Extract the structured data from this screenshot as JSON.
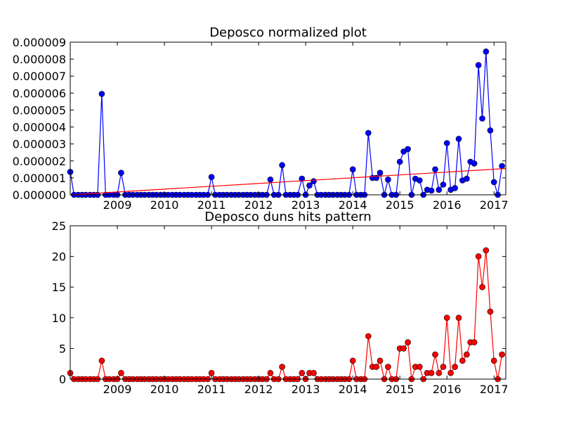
{
  "chart_data": [
    {
      "type": "line",
      "title": "Deposco normalized plot",
      "xlabel": "",
      "ylabel": "",
      "x_unit": "year",
      "xlim": [
        2008.0,
        2017.25
      ],
      "ylim": [
        0,
        9e-06
      ],
      "x_ticks": [
        2009,
        2010,
        2011,
        2012,
        2013,
        2014,
        2015,
        2016,
        2017
      ],
      "y_ticks": [
        0,
        1e-06,
        2e-06,
        3e-06,
        4e-06,
        5e-06,
        6e-06,
        7e-06,
        8e-06,
        9e-06
      ],
      "y_tick_labels": [
        "0.000000",
        "0.000001",
        "0.000002",
        "0.000003",
        "0.000004",
        "0.000005",
        "0.000006",
        "0.000007",
        "0.000008",
        "0.000009"
      ],
      "grid": false,
      "series": [
        {
          "color": "#0000ff",
          "marker": "circle",
          "points": [
            [
              2008.0,
              1.35e-06
            ],
            [
              2008.08,
              0
            ],
            [
              2008.17,
              0
            ],
            [
              2008.25,
              0
            ],
            [
              2008.33,
              0
            ],
            [
              2008.42,
              0
            ],
            [
              2008.5,
              0
            ],
            [
              2008.58,
              0
            ],
            [
              2008.67,
              5.95e-06
            ],
            [
              2008.75,
              0
            ],
            [
              2008.83,
              0
            ],
            [
              2008.92,
              0
            ],
            [
              2009.0,
              0
            ],
            [
              2009.08,
              1.3e-06
            ],
            [
              2009.17,
              0
            ],
            [
              2009.25,
              0
            ],
            [
              2009.33,
              0
            ],
            [
              2009.42,
              0
            ],
            [
              2009.5,
              0
            ],
            [
              2009.58,
              0
            ],
            [
              2009.67,
              0
            ],
            [
              2009.75,
              0
            ],
            [
              2009.83,
              0
            ],
            [
              2009.92,
              0
            ],
            [
              2010.0,
              0
            ],
            [
              2010.08,
              0
            ],
            [
              2010.17,
              0
            ],
            [
              2010.25,
              0
            ],
            [
              2010.33,
              0
            ],
            [
              2010.42,
              0
            ],
            [
              2010.5,
              0
            ],
            [
              2010.58,
              0
            ],
            [
              2010.67,
              0
            ],
            [
              2010.75,
              0
            ],
            [
              2010.83,
              0
            ],
            [
              2010.92,
              0
            ],
            [
              2011.0,
              1.05e-06
            ],
            [
              2011.08,
              0
            ],
            [
              2011.17,
              0
            ],
            [
              2011.25,
              0
            ],
            [
              2011.33,
              0
            ],
            [
              2011.42,
              0
            ],
            [
              2011.5,
              0
            ],
            [
              2011.58,
              0
            ],
            [
              2011.67,
              0
            ],
            [
              2011.75,
              0
            ],
            [
              2011.83,
              0
            ],
            [
              2011.92,
              0
            ],
            [
              2012.0,
              0
            ],
            [
              2012.08,
              0
            ],
            [
              2012.17,
              0
            ],
            [
              2012.25,
              9e-07
            ],
            [
              2012.33,
              0
            ],
            [
              2012.42,
              0
            ],
            [
              2012.5,
              1.75e-06
            ],
            [
              2012.58,
              0
            ],
            [
              2012.67,
              0
            ],
            [
              2012.75,
              0
            ],
            [
              2012.83,
              0
            ],
            [
              2012.92,
              9.5e-07
            ],
            [
              2013.0,
              0
            ],
            [
              2013.08,
              5.5e-07
            ],
            [
              2013.17,
              8e-07
            ],
            [
              2013.25,
              0
            ],
            [
              2013.33,
              0
            ],
            [
              2013.42,
              0
            ],
            [
              2013.5,
              0
            ],
            [
              2013.58,
              0
            ],
            [
              2013.67,
              0
            ],
            [
              2013.75,
              0
            ],
            [
              2013.83,
              0
            ],
            [
              2013.92,
              0
            ],
            [
              2014.0,
              1.5e-06
            ],
            [
              2014.08,
              0
            ],
            [
              2014.17,
              0
            ],
            [
              2014.25,
              0
            ],
            [
              2014.33,
              3.65e-06
            ],
            [
              2014.42,
              1e-06
            ],
            [
              2014.5,
              1e-06
            ],
            [
              2014.58,
              1.3e-06
            ],
            [
              2014.67,
              0
            ],
            [
              2014.75,
              9e-07
            ],
            [
              2014.83,
              0
            ],
            [
              2014.92,
              0
            ],
            [
              2015.0,
              1.95e-06
            ],
            [
              2015.08,
              2.55e-06
            ],
            [
              2015.17,
              2.7e-06
            ],
            [
              2015.25,
              0
            ],
            [
              2015.33,
              9.5e-07
            ],
            [
              2015.42,
              8.5e-07
            ],
            [
              2015.5,
              0
            ],
            [
              2015.58,
              3e-07
            ],
            [
              2015.67,
              2.5e-07
            ],
            [
              2015.75,
              1.5e-06
            ],
            [
              2015.83,
              3e-07
            ],
            [
              2015.92,
              6e-07
            ],
            [
              2016.0,
              3.05e-06
            ],
            [
              2016.08,
              3e-07
            ],
            [
              2016.17,
              4e-07
            ],
            [
              2016.25,
              3.3e-06
            ],
            [
              2016.33,
              8.5e-07
            ],
            [
              2016.42,
              9.5e-07
            ],
            [
              2016.5,
              1.95e-06
            ],
            [
              2016.58,
              1.85e-06
            ],
            [
              2016.67,
              7.65e-06
            ],
            [
              2016.75,
              4.5e-06
            ],
            [
              2016.83,
              8.45e-06
            ],
            [
              2016.92,
              3.8e-06
            ],
            [
              2017.0,
              7.5e-07
            ],
            [
              2017.08,
              0
            ],
            [
              2017.17,
              1.7e-06
            ]
          ]
        },
        {
          "color": "#ff0000",
          "marker": "none",
          "points": [
            [
              2008.0,
              0.0
            ],
            [
              2017.25,
              1.55e-06
            ]
          ]
        }
      ]
    },
    {
      "type": "line",
      "title": "Deposco duns hits pattern",
      "xlabel": "",
      "ylabel": "",
      "x_unit": "year",
      "xlim": [
        2008.0,
        2017.25
      ],
      "ylim": [
        0,
        25
      ],
      "x_ticks": [
        2009,
        2010,
        2011,
        2012,
        2013,
        2014,
        2015,
        2016,
        2017
      ],
      "y_ticks": [
        0,
        5,
        10,
        15,
        20,
        25
      ],
      "y_tick_labels": [
        "0",
        "5",
        "10",
        "15",
        "20",
        "25"
      ],
      "grid": false,
      "series": [
        {
          "color": "#ff0000",
          "marker": "circle",
          "points": [
            [
              2008.0,
              1
            ],
            [
              2008.08,
              0
            ],
            [
              2008.17,
              0
            ],
            [
              2008.25,
              0
            ],
            [
              2008.33,
              0
            ],
            [
              2008.42,
              0
            ],
            [
              2008.5,
              0
            ],
            [
              2008.58,
              0
            ],
            [
              2008.67,
              3
            ],
            [
              2008.75,
              0
            ],
            [
              2008.83,
              0
            ],
            [
              2008.92,
              0
            ],
            [
              2009.0,
              0
            ],
            [
              2009.08,
              1
            ],
            [
              2009.17,
              0
            ],
            [
              2009.25,
              0
            ],
            [
              2009.33,
              0
            ],
            [
              2009.42,
              0
            ],
            [
              2009.5,
              0
            ],
            [
              2009.58,
              0
            ],
            [
              2009.67,
              0
            ],
            [
              2009.75,
              0
            ],
            [
              2009.83,
              0
            ],
            [
              2009.92,
              0
            ],
            [
              2010.0,
              0
            ],
            [
              2010.08,
              0
            ],
            [
              2010.17,
              0
            ],
            [
              2010.25,
              0
            ],
            [
              2010.33,
              0
            ],
            [
              2010.42,
              0
            ],
            [
              2010.5,
              0
            ],
            [
              2010.58,
              0
            ],
            [
              2010.67,
              0
            ],
            [
              2010.75,
              0
            ],
            [
              2010.83,
              0
            ],
            [
              2010.92,
              0
            ],
            [
              2011.0,
              1
            ],
            [
              2011.08,
              0
            ],
            [
              2011.17,
              0
            ],
            [
              2011.25,
              0
            ],
            [
              2011.33,
              0
            ],
            [
              2011.42,
              0
            ],
            [
              2011.5,
              0
            ],
            [
              2011.58,
              0
            ],
            [
              2011.67,
              0
            ],
            [
              2011.75,
              0
            ],
            [
              2011.83,
              0
            ],
            [
              2011.92,
              0
            ],
            [
              2012.0,
              0
            ],
            [
              2012.08,
              0
            ],
            [
              2012.17,
              0
            ],
            [
              2012.25,
              1
            ],
            [
              2012.33,
              0
            ],
            [
              2012.42,
              0
            ],
            [
              2012.5,
              2
            ],
            [
              2012.58,
              0
            ],
            [
              2012.67,
              0
            ],
            [
              2012.75,
              0
            ],
            [
              2012.83,
              0
            ],
            [
              2012.92,
              1
            ],
            [
              2013.0,
              0
            ],
            [
              2013.08,
              1
            ],
            [
              2013.17,
              1
            ],
            [
              2013.25,
              0
            ],
            [
              2013.33,
              0
            ],
            [
              2013.42,
              0
            ],
            [
              2013.5,
              0
            ],
            [
              2013.58,
              0
            ],
            [
              2013.67,
              0
            ],
            [
              2013.75,
              0
            ],
            [
              2013.83,
              0
            ],
            [
              2013.92,
              0
            ],
            [
              2014.0,
              3
            ],
            [
              2014.08,
              0
            ],
            [
              2014.17,
              0
            ],
            [
              2014.25,
              0
            ],
            [
              2014.33,
              7
            ],
            [
              2014.42,
              2
            ],
            [
              2014.5,
              2
            ],
            [
              2014.58,
              3
            ],
            [
              2014.67,
              0
            ],
            [
              2014.75,
              2
            ],
            [
              2014.83,
              0
            ],
            [
              2014.92,
              0
            ],
            [
              2015.0,
              5
            ],
            [
              2015.08,
              5
            ],
            [
              2015.17,
              6
            ],
            [
              2015.25,
              0
            ],
            [
              2015.33,
              2
            ],
            [
              2015.42,
              2
            ],
            [
              2015.5,
              0
            ],
            [
              2015.58,
              1
            ],
            [
              2015.67,
              1
            ],
            [
              2015.75,
              4
            ],
            [
              2015.83,
              1
            ],
            [
              2015.92,
              2
            ],
            [
              2016.0,
              10
            ],
            [
              2016.08,
              1
            ],
            [
              2016.17,
              2
            ],
            [
              2016.25,
              10
            ],
            [
              2016.33,
              3
            ],
            [
              2016.42,
              4
            ],
            [
              2016.5,
              6
            ],
            [
              2016.58,
              6
            ],
            [
              2016.67,
              20
            ],
            [
              2016.75,
              15
            ],
            [
              2016.83,
              21
            ],
            [
              2016.92,
              11
            ],
            [
              2017.0,
              3
            ],
            [
              2017.08,
              0
            ],
            [
              2017.17,
              4
            ]
          ]
        }
      ]
    }
  ]
}
